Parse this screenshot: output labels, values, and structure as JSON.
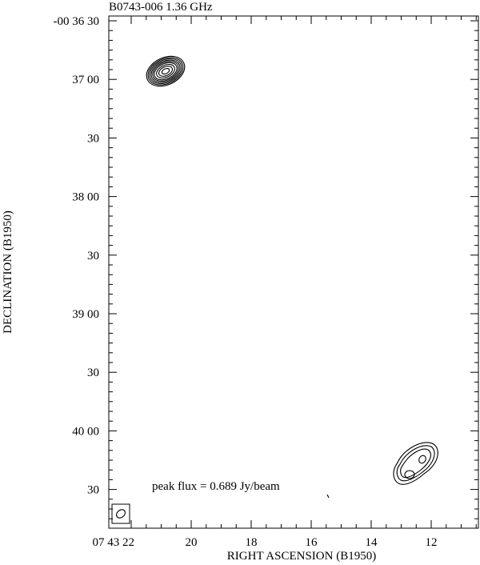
{
  "header": {
    "title": "B0743-006  1.36 GHz"
  },
  "axes": {
    "x_label": "RIGHT ASCENSION (B1950)",
    "y_label": "DECLINATION (B1950)",
    "x_ticks": [
      "07 43 22",
      "20",
      "18",
      "16",
      "14",
      "12"
    ],
    "y_ticks": [
      "-00 36 30",
      "37 00",
      "30",
      "38 00",
      "30",
      "39 00",
      "30",
      "40 00",
      "30"
    ]
  },
  "annotation": "peak flux =  0.689 Jy/beam"
}
